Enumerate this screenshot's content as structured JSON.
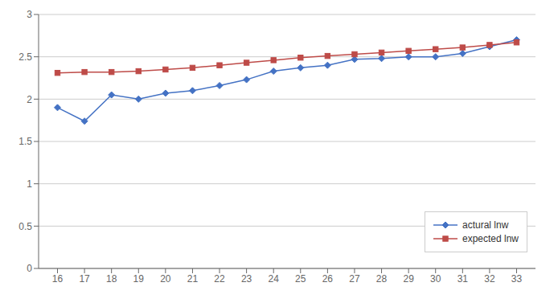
{
  "chart_data": {
    "type": "line",
    "x": [
      16,
      17,
      18,
      19,
      20,
      21,
      22,
      23,
      24,
      25,
      26,
      27,
      28,
      29,
      30,
      31,
      32,
      33
    ],
    "series": [
      {
        "name": "actural lnw",
        "color": "#4472C4",
        "marker": "diamond",
        "values": [
          1.9,
          1.74,
          2.05,
          2.0,
          2.07,
          2.1,
          2.16,
          2.23,
          2.33,
          2.37,
          2.4,
          2.47,
          2.48,
          2.5,
          2.5,
          2.54,
          2.62,
          2.7
        ]
      },
      {
        "name": "expected lnw",
        "color": "#BE4B48",
        "marker": "square",
        "values": [
          2.31,
          2.32,
          2.32,
          2.33,
          2.35,
          2.37,
          2.4,
          2.43,
          2.46,
          2.49,
          2.51,
          2.53,
          2.55,
          2.57,
          2.59,
          2.61,
          2.64,
          2.67
        ]
      }
    ],
    "xlim": [
      15.3,
      33.7
    ],
    "xticks": [
      16,
      17,
      18,
      19,
      20,
      21,
      22,
      23,
      24,
      25,
      26,
      27,
      28,
      29,
      30,
      31,
      32,
      33
    ],
    "ylim": [
      0,
      3.0
    ],
    "yticks": [
      0,
      0.5,
      1.0,
      1.5,
      2.0,
      2.5,
      3.0
    ],
    "grid": "y",
    "legend": "lower right"
  }
}
